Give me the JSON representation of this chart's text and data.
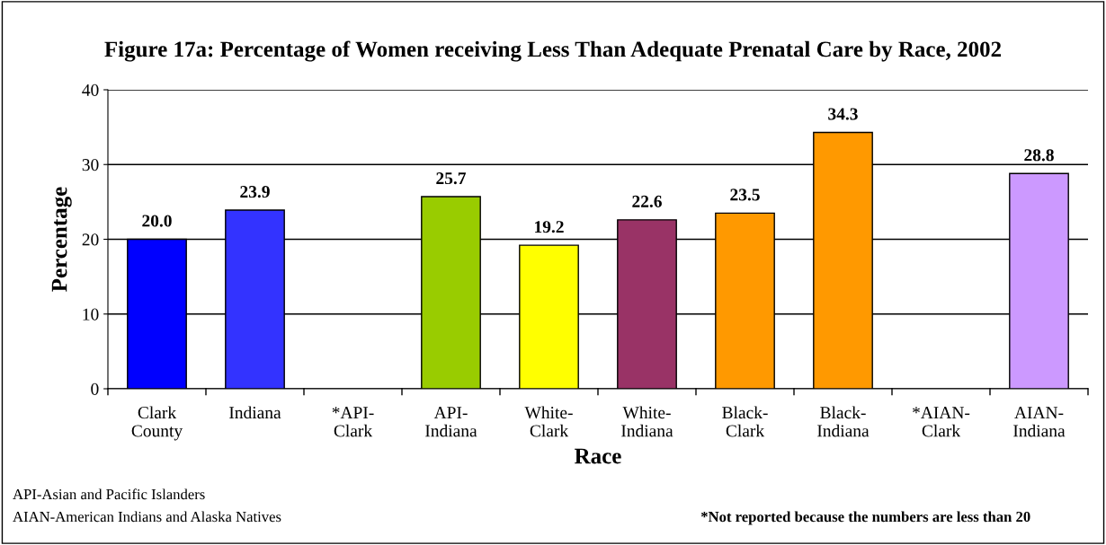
{
  "chart_data": {
    "type": "bar",
    "title": "Figure 17a: Percentage of Women receiving Less Than Adequate Prenatal Care by Race, 2002",
    "xlabel": "Race",
    "ylabel": "Percentage",
    "categories": [
      "Clark\nCounty",
      "Indiana",
      "*API-\nClark",
      "API-\nIndiana",
      "White-\nClark",
      "White-\nIndiana",
      "Black-\nClark",
      "Black-\nIndiana",
      "*AIAN-\nClark",
      "AIAN-\nIndiana"
    ],
    "values": [
      20.0,
      23.9,
      null,
      25.7,
      19.2,
      22.6,
      23.5,
      34.3,
      null,
      28.8
    ],
    "value_labels": [
      "20.0",
      "23.9",
      null,
      "25.7",
      "19.2",
      "22.6",
      "23.5",
      "34.3",
      null,
      "28.8"
    ],
    "colors": [
      "#0000ff",
      "#3333ff",
      "#99cc00",
      "#99cc00",
      "#ffff00",
      "#993366",
      "#ff9900",
      "#ff9900",
      "#cc99ff",
      "#cc99ff"
    ],
    "ylim": [
      0,
      40
    ],
    "yticks": [
      0,
      10,
      20,
      30,
      40
    ],
    "grid": "y",
    "annotations": [
      "API-Asian and Pacific Islanders",
      "AIAN-American Indians and Alaska Natives",
      "*Not reported because the numbers are less than 20"
    ]
  }
}
